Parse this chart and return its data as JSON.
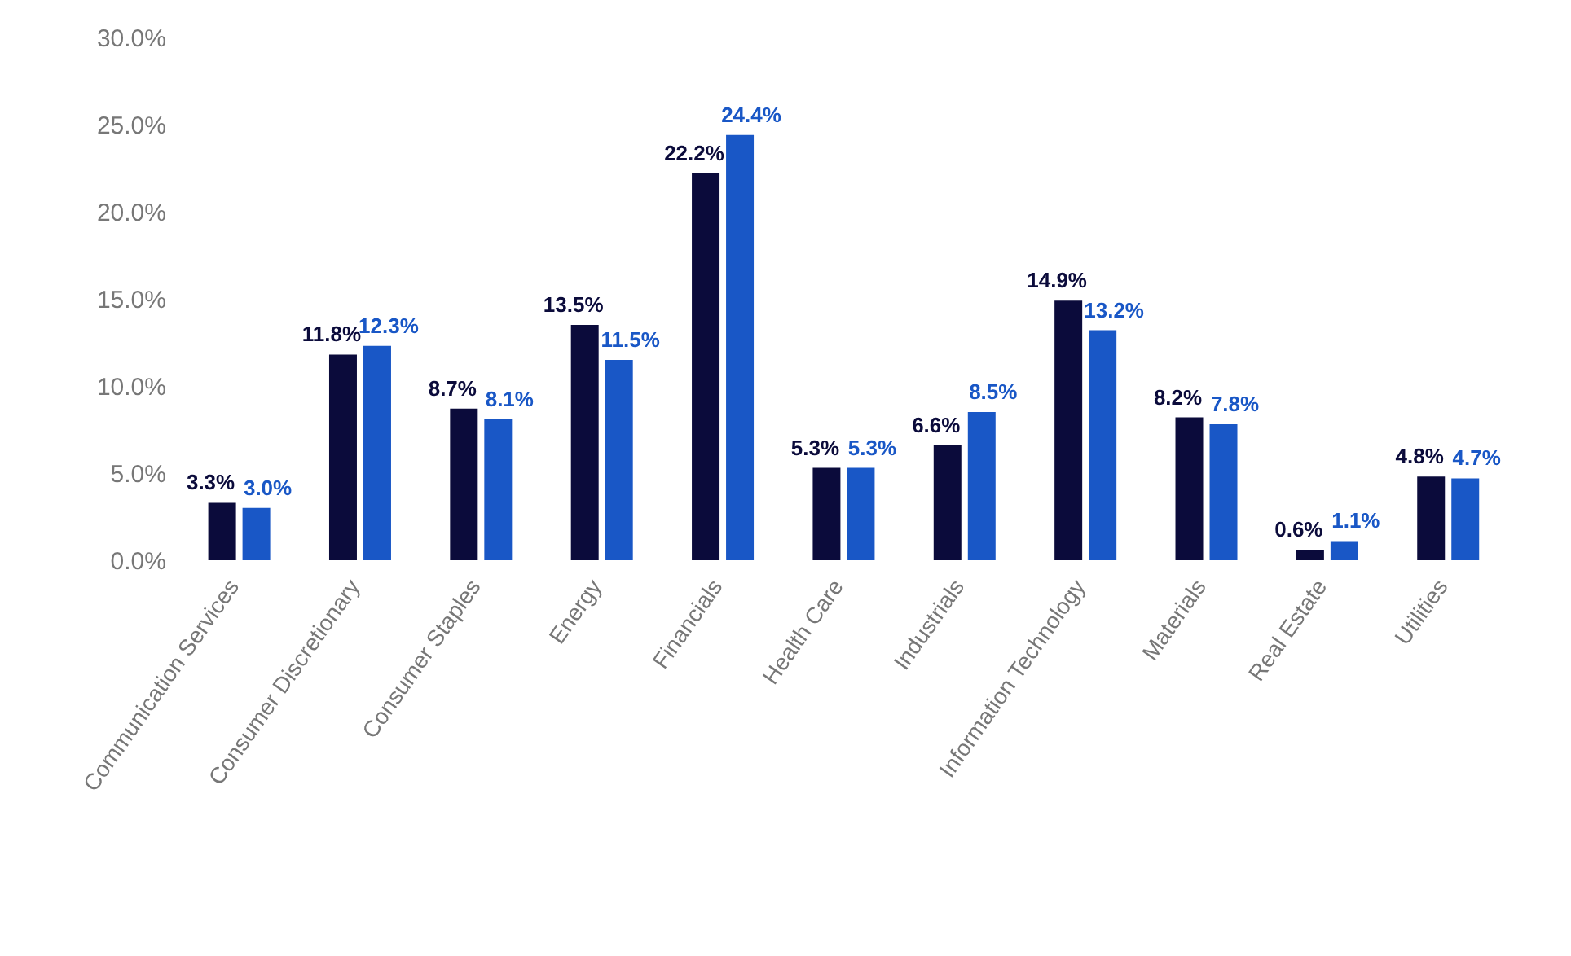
{
  "chart_data": {
    "type": "bar",
    "categories": [
      "Communication Services",
      "Consumer Discretionary",
      "Consumer Staples",
      "Energy",
      "Financials",
      "Health Care",
      "Industrials",
      "Information Technology",
      "Materials",
      "Real Estate",
      "Utilities"
    ],
    "series": [
      {
        "color": "#0b0b3b",
        "values": [
          3.3,
          11.8,
          8.7,
          13.5,
          22.2,
          5.3,
          6.6,
          14.9,
          8.2,
          0.6,
          4.8
        ],
        "value_labels": [
          "3.3%",
          "11.8%",
          "8.7%",
          "13.5%",
          "22.2%",
          "5.3%",
          "6.6%",
          "14.9%",
          "8.2%",
          "0.6%",
          "4.8%"
        ]
      },
      {
        "color": "#1957c6",
        "values": [
          3.0,
          12.3,
          8.1,
          11.5,
          24.4,
          5.3,
          8.5,
          13.2,
          7.8,
          1.1,
          4.7
        ],
        "value_labels": [
          "3.0%",
          "12.3%",
          "8.1%",
          "11.5%",
          "24.4%",
          "5.3%",
          "8.5%",
          "13.2%",
          "7.8%",
          "1.1%",
          "4.7%"
        ]
      }
    ],
    "ylim": [
      0,
      30
    ],
    "yticks": [
      {
        "value": 0,
        "label": "0.0%"
      },
      {
        "value": 5,
        "label": "5.0%"
      },
      {
        "value": 10,
        "label": "10.0%"
      },
      {
        "value": 15,
        "label": "15.0%"
      },
      {
        "value": 20,
        "label": "20.0%"
      },
      {
        "value": 25,
        "label": "25.0%"
      },
      {
        "value": 30,
        "label": "30.0%"
      }
    ],
    "grid": false,
    "legend": false
  }
}
